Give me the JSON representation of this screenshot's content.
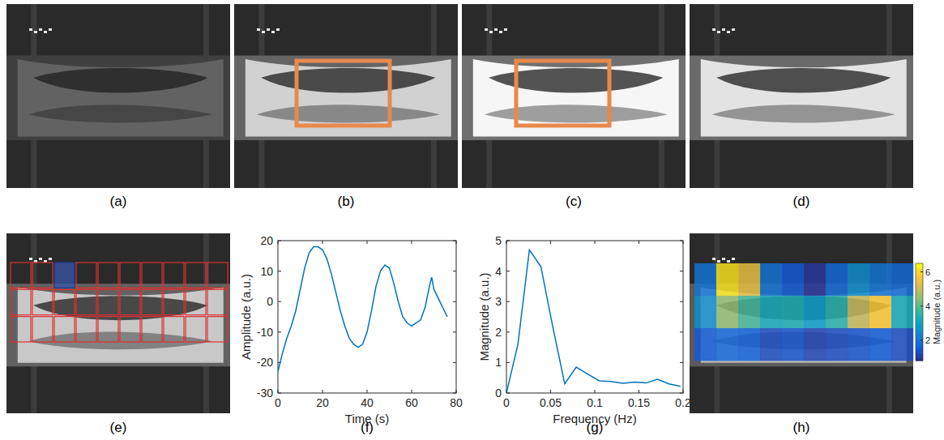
{
  "panels": [
    "(a)",
    "(b)",
    "(c)",
    "(d)",
    "(e)",
    "(f)",
    "(g)",
    "(h)"
  ],
  "chart_data": [
    {
      "type": "line",
      "xlabel": "Time (s)",
      "ylabel": "Amplitude (a.u.)",
      "x": [
        0,
        2,
        4,
        6,
        8,
        10,
        12,
        14,
        16,
        18,
        20,
        22,
        24,
        26,
        28,
        30,
        32,
        34,
        36,
        38,
        40,
        42,
        44,
        46,
        48,
        50,
        52,
        54,
        56,
        58,
        60,
        62,
        64,
        66,
        68,
        69,
        70,
        72,
        74,
        76
      ],
      "values": [
        -23,
        -17,
        -12,
        -8,
        -3,
        4,
        11,
        16,
        18,
        18,
        17,
        14,
        9,
        3,
        -3,
        -8,
        -12,
        -14,
        -15,
        -14,
        -10,
        -3,
        5,
        10,
        12,
        11,
        6,
        0,
        -5,
        -7,
        -8,
        -7,
        -6,
        -2,
        5,
        8,
        4,
        1,
        -2,
        -5
      ],
      "color": "#0072bd",
      "xlim": [
        0,
        80
      ],
      "xticks": [
        0,
        20,
        40,
        60,
        80
      ],
      "ylim": [
        -30,
        20
      ],
      "yticks": [
        -30,
        -20,
        -10,
        0,
        10,
        20
      ]
    },
    {
      "type": "line",
      "xlabel": "Frequency (Hz)",
      "ylabel": "Magnitude (a.u.)",
      "x": [
        0,
        0.013,
        0.026,
        0.039,
        0.053,
        0.066,
        0.079,
        0.092,
        0.105,
        0.118,
        0.132,
        0.145,
        0.158,
        0.171,
        0.184,
        0.197
      ],
      "values": [
        0,
        1.6,
        4.7,
        4.15,
        2.1,
        0.3,
        0.85,
        0.62,
        0.4,
        0.38,
        0.32,
        0.36,
        0.33,
        0.45,
        0.3,
        0.22
      ],
      "color": "#0072bd",
      "xlim": [
        0,
        0.2
      ],
      "xticks": [
        0,
        0.05,
        0.1,
        0.15,
        0.2
      ],
      "ylim": [
        0,
        5
      ],
      "yticks": [
        0,
        1,
        2,
        3,
        4,
        5
      ]
    },
    {
      "type": "heatmap",
      "colorbar_label": "Magnitude (a.u.)",
      "cells": [
        [
          2.0,
          6.2,
          5.5,
          2.0,
          1.5,
          1.0,
          1.8,
          2.5,
          2.0,
          1.8
        ],
        [
          2.5,
          4.5,
          3.8,
          3.2,
          3.3,
          2.8,
          3.5,
          5.0,
          5.8,
          3.2
        ],
        [
          1.5,
          1.8,
          1.6,
          1.3,
          1.4,
          1.2,
          1.3,
          1.4,
          1.5,
          1.3
        ]
      ],
      "colorbar_lim": [
        0.8,
        6.5
      ],
      "colorbar_ticks": [
        2,
        4,
        6
      ]
    }
  ]
}
